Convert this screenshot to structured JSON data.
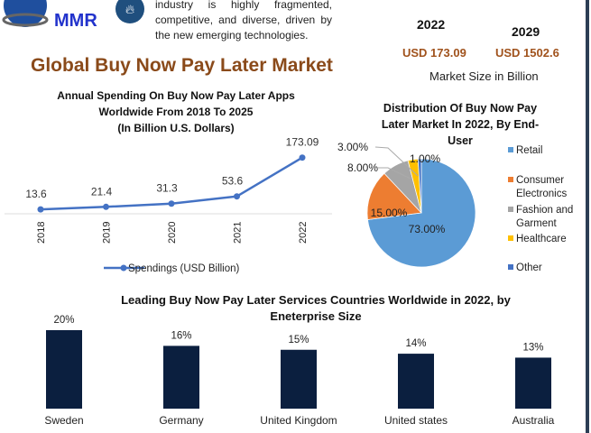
{
  "logo": {
    "text": "MMR"
  },
  "intro_text": "industry is highly fragmented, competitive, and diverse, driven by the new emerging technologies.",
  "page_title": "Global Buy Now Pay Later Market",
  "market_size": {
    "years": [
      "2022",
      "2029"
    ],
    "values": [
      "USD 173.09",
      "USD 1502.6"
    ],
    "caption": "Market Size in Billion"
  },
  "colors": {
    "title": "#8a4a1a",
    "accent": "#a0521c",
    "line": "#4472c4"
  },
  "chart_data": [
    {
      "type": "line",
      "title": "Annual Spending On Buy Now Pay Later Apps Worldwide From 2018 To 2025 (In Billion U.S. Dollars)",
      "title_lines": [
        "Annual Spending On Buy Now Pay Later Apps",
        "Worldwide From 2018 To 2025",
        "(In Billion U.S. Dollars)"
      ],
      "categories": [
        "2018",
        "2019",
        "2020",
        "2021",
        "2022"
      ],
      "series": [
        {
          "name": "Spendings (USD Billion)",
          "values": [
            13.6,
            21.4,
            31.3,
            53.6,
            173.09
          ],
          "labels": [
            "13.6",
            "21.4",
            "31.3",
            "53.6",
            "173.09"
          ]
        }
      ],
      "legend": "bottom",
      "grid": false
    },
    {
      "type": "pie",
      "title": "Distribution Of Buy Now Pay Later Market In 2022, By End-User",
      "title_lines": [
        "Distribution Of Buy Now Pay",
        "Later Market In 2022, By End-",
        "User"
      ],
      "categories": [
        "Retail",
        "Consumer Electronics",
        "Fashion and Garment",
        "Healthcare",
        "Other"
      ],
      "legend_lines": [
        [
          "Retail"
        ],
        [
          "Consumer",
          "Electronics"
        ],
        [
          "Fashion and",
          "Garment"
        ],
        [
          "Healthcare"
        ],
        [
          "Other"
        ]
      ],
      "values": [
        73,
        15,
        8,
        3,
        1
      ],
      "labels": [
        "73.00%",
        "15.00%",
        "8.00%",
        "3.00%",
        "1.00%"
      ],
      "colors": [
        "#5b9bd5",
        "#ed7d31",
        "#a5a5a5",
        "#ffc000",
        "#4472c4"
      ],
      "legend": "right"
    },
    {
      "type": "bar",
      "title": "Leading Buy Now Pay Later Services Countries Worldwide in 2022, by Eneterprise Size",
      "title_lines": [
        "Leading Buy Now Pay Later Services Countries Worldwide in 2022, by",
        "Eneterprise Size"
      ],
      "categories": [
        "Sweden",
        "Germany",
        "United Kingdom",
        "United states",
        "Australia"
      ],
      "values": [
        20,
        16,
        15,
        14,
        13
      ],
      "labels": [
        "20%",
        "16%",
        "15%",
        "14%",
        "13%"
      ],
      "color": "#0b1f3f"
    }
  ]
}
